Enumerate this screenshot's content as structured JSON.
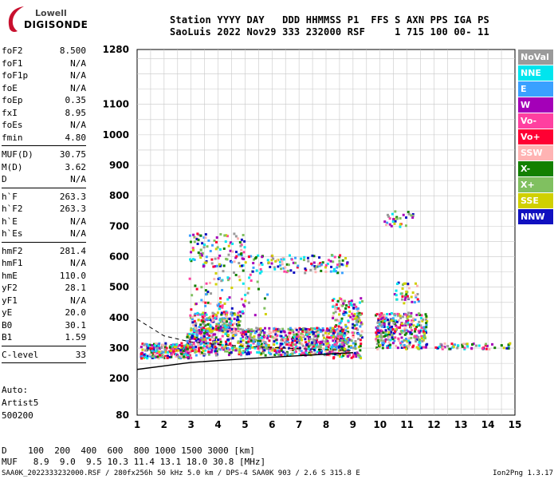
{
  "logo": {
    "line1": "Lowell",
    "line2": "DIGISONDE",
    "swoosh_color": "#c8102e"
  },
  "header": {
    "line1": "Station YYYY DAY   DDD HHMMSS P1  FFS S AXN PPS IGA PS",
    "line2": "SaoLuis 2022 Nov29 333 232000 RSF     1 715 100 00- 11"
  },
  "params_groups": [
    [
      [
        "foF2",
        "8.500"
      ],
      [
        "foF1",
        "N/A"
      ],
      [
        "foF1p",
        "N/A"
      ],
      [
        "foE",
        "N/A"
      ],
      [
        "foEp",
        "0.35"
      ],
      [
        "fxI",
        "8.95"
      ],
      [
        "foEs",
        "N/A"
      ],
      [
        "fmin",
        "4.80"
      ]
    ],
    [
      [
        "MUF(D)",
        "30.75"
      ],
      [
        "M(D)",
        "3.62"
      ],
      [
        "D",
        "N/A"
      ]
    ],
    [
      [
        "h`F",
        "263.3"
      ],
      [
        "h`F2",
        "263.3"
      ],
      [
        "h`E",
        "N/A"
      ],
      [
        "h`Es",
        "N/A"
      ]
    ],
    [
      [
        "hmF2",
        "281.4"
      ],
      [
        "hmF1",
        "N/A"
      ],
      [
        "hmE",
        "110.0"
      ],
      [
        "yF2",
        "28.1"
      ],
      [
        "yF1",
        "N/A"
      ],
      [
        "yE",
        "20.0"
      ],
      [
        "B0",
        "30.1"
      ],
      [
        "B1",
        "1.59"
      ]
    ],
    [
      [
        "C-level",
        "33"
      ]
    ]
  ],
  "auto": {
    "l1": "Auto:",
    "l2": "Artist5",
    "l3": "500200"
  },
  "legend": [
    {
      "label": "NoVal",
      "color": "#9a9a9a"
    },
    {
      "label": "NNE",
      "color": "#00e5ee"
    },
    {
      "label": "E",
      "color": "#3aa0ff"
    },
    {
      "label": "W",
      "color": "#a400b8"
    },
    {
      "label": "Vo-",
      "color": "#ff3fa0"
    },
    {
      "label": "Vo+",
      "color": "#ff0033"
    },
    {
      "label": "SSW",
      "color": "#ffb3b3"
    },
    {
      "label": "X-",
      "color": "#138000"
    },
    {
      "label": "X+",
      "color": "#80c060"
    },
    {
      "label": "SSE",
      "color": "#d0d000"
    },
    {
      "label": "NNW",
      "color": "#1010c0"
    }
  ],
  "bottom": {
    "d_line": "D    100  200  400  600  800 1000 1500 3000 [km]",
    "muf_line": "MUF   8.9  9.0  9.5 10.3 11.4 13.1 18.0 30.8 [MHz]"
  },
  "footer": {
    "left": "SAA0K_2022333232000.RSF / 280fx256h 50 kHz 5.0 km / DPS-4 SAA0K 903 / 2.6 S 315.8 E",
    "right": "Ion2Png 1.3.17"
  },
  "chart_data": {
    "type": "scatter",
    "xlim": [
      1,
      15
    ],
    "ylim": [
      80,
      1280
    ],
    "xticks": [
      1,
      2,
      3,
      4,
      5,
      6,
      7,
      8,
      9,
      10,
      11,
      12,
      13,
      14,
      15
    ],
    "yticks": [
      80,
      200,
      300,
      400,
      500,
      600,
      700,
      800,
      900,
      1000,
      1100,
      1280
    ],
    "grid": true,
    "profile_curve": {
      "x": [
        1,
        3,
        5,
        7,
        9
      ],
      "y": [
        230,
        253,
        265,
        275,
        285
      ]
    },
    "trace_curve": {
      "x": [
        1,
        2,
        3,
        4,
        5,
        6,
        7,
        8,
        9
      ],
      "y": [
        395,
        340,
        320,
        312,
        306,
        302,
        298,
        295,
        292
      ]
    }
  }
}
